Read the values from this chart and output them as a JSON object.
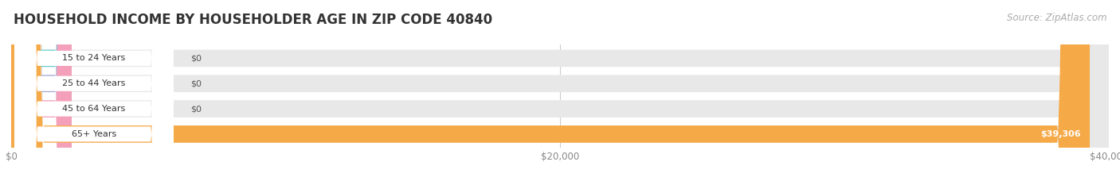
{
  "title": "HOUSEHOLD INCOME BY HOUSEHOLDER AGE IN ZIP CODE 40840",
  "source": "Source: ZipAtlas.com",
  "categories": [
    "15 to 24 Years",
    "25 to 44 Years",
    "45 to 64 Years",
    "65+ Years"
  ],
  "values": [
    0,
    0,
    0,
    39306
  ],
  "bar_colors": [
    "#6ecfcf",
    "#a9a9d9",
    "#f5a0ba",
    "#f5a947"
  ],
  "xlim": [
    0,
    40000
  ],
  "xticks": [
    0,
    20000,
    40000
  ],
  "xtick_labels": [
    "$0",
    "$20,000",
    "$40,000"
  ],
  "background_color": "#f5f5f5",
  "bar_background": "#e8e8e8",
  "title_fontsize": 12,
  "source_fontsize": 8.5,
  "value_label": [
    "$0",
    "$0",
    "$0",
    "$39,306"
  ]
}
